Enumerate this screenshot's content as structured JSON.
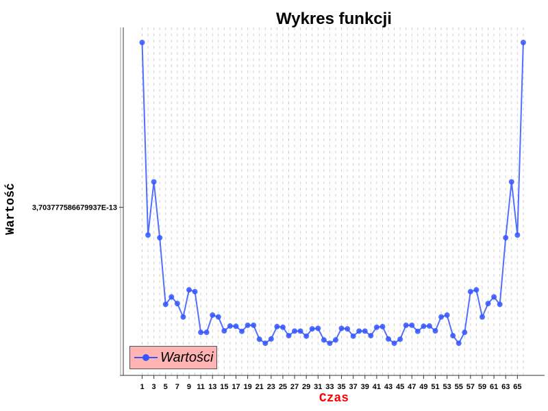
{
  "chart_data": {
    "type": "line",
    "title": "Wykres funkcji",
    "xlabel": "Czas",
    "ylabel": "Wartość",
    "x": [
      1,
      2,
      3,
      4,
      5,
      6,
      7,
      8,
      9,
      10,
      11,
      12,
      13,
      14,
      15,
      16,
      17,
      18,
      19,
      20,
      21,
      22,
      23,
      24,
      25,
      26,
      27,
      28,
      29,
      30,
      31,
      32,
      33,
      34,
      35,
      36,
      37,
      38,
      39,
      40,
      41,
      42,
      43,
      44,
      45,
      46,
      47,
      48,
      49,
      50,
      51,
      52,
      53,
      54,
      55,
      56,
      57,
      58,
      59,
      60,
      61,
      62,
      63,
      64,
      65,
      66
    ],
    "x_ticks": [
      "1",
      "3",
      "5",
      "7",
      "9",
      "11",
      "13",
      "15",
      "17",
      "19",
      "21",
      "23",
      "25",
      "27",
      "29",
      "31",
      "33",
      "35",
      "37",
      "39",
      "41",
      "43",
      "45",
      "47",
      "49",
      "51",
      "53",
      "55",
      "57",
      "59",
      "61",
      "63",
      "65"
    ],
    "y_tick_label": "3,703777586679937E-13",
    "series": [
      {
        "name": "Wartości",
        "values": [
          1.0,
          0.3954,
          0.5625,
          0.3869,
          0.1778,
          0.2011,
          0.1804,
          0.1382,
          0.2233,
          0.2178,
          0.09,
          0.09,
          0.1442,
          0.1384,
          0.0946,
          0.1099,
          0.1091,
          0.0931,
          0.1122,
          0.1122,
          0.0684,
          0.0557,
          0.0692,
          0.108,
          0.106,
          0.0795,
          0.0939,
          0.0939,
          0.078,
          0.1009,
          0.1025,
          0.066,
          0.0557,
          0.066,
          0.1025,
          0.1009,
          0.078,
          0.0939,
          0.0939,
          0.0795,
          0.106,
          0.108,
          0.0692,
          0.0557,
          0.0684,
          0.1122,
          0.1122,
          0.0931,
          0.1091,
          0.1099,
          0.0946,
          0.1384,
          0.1442,
          0.0795,
          0.0557,
          0.09,
          0.2178,
          0.2233,
          0.1382,
          0.1804,
          0.2011,
          0.1778,
          0.3869,
          0.5625,
          0.3954,
          1.0
        ],
        "color": "#3355ff"
      }
    ],
    "y_ref_value": 0.4825,
    "ylim": [
      0.0,
      1.0
    ],
    "grid": "vertical-dashed",
    "legend": "bottom-left"
  },
  "legend_label": "Wartości"
}
